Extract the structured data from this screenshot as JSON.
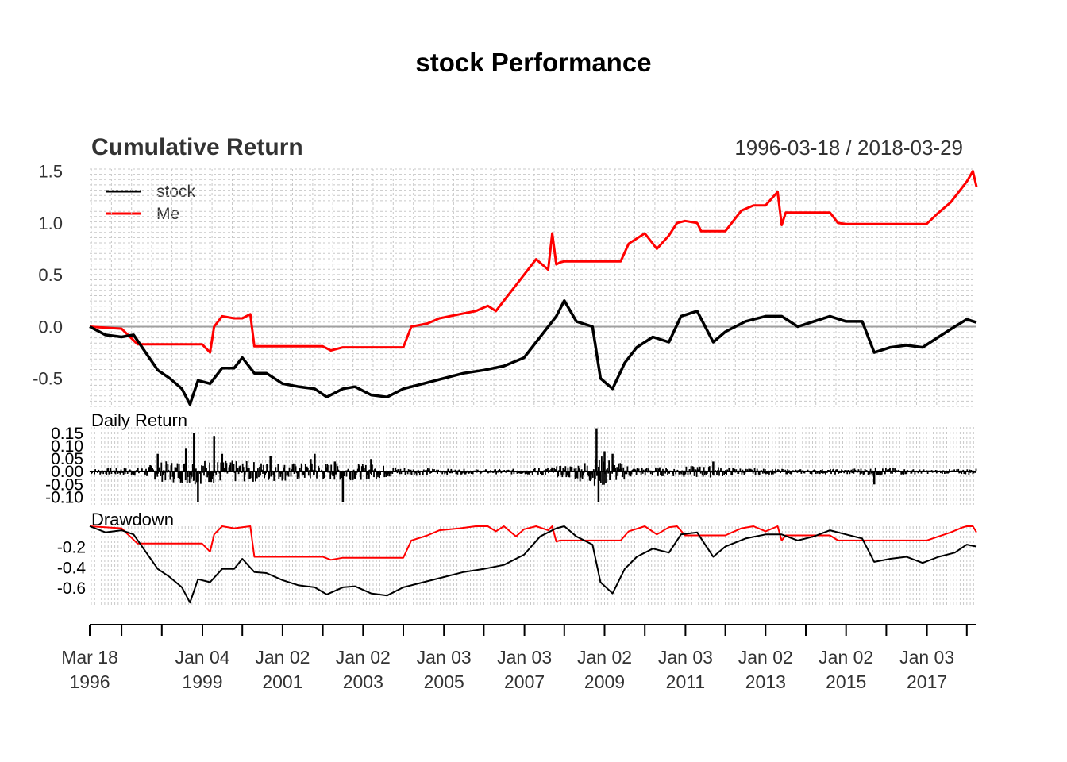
{
  "title": "stock Performance",
  "colors": {
    "stock": "#000000",
    "Me": "#ff0000",
    "grid": "#c8c8c8",
    "zero": "#a0a0a0"
  },
  "chart_data": [
    {
      "type": "line",
      "panel": "cumulative",
      "title": "Cumulative Return",
      "date_range": "1996-03-18 / 2018-03-29",
      "xlim": [
        1996.21,
        2018.24
      ],
      "ylim": [
        -0.77,
        1.52
      ],
      "yticks": [
        -0.5,
        0.0,
        0.5,
        1.0,
        1.5
      ],
      "ytick_labels": [
        "-0.5",
        "0.0",
        "0.5",
        "1.0",
        "1.5"
      ],
      "grid": true,
      "legend": "top-left",
      "series": [
        {
          "name": "stock",
          "color": "#000000",
          "x": [
            1996.21,
            1996.6,
            1997.0,
            1997.3,
            1997.6,
            1997.9,
            1998.2,
            1998.5,
            1998.7,
            1998.9,
            1999.2,
            1999.5,
            1999.8,
            2000.0,
            2000.3,
            2000.6,
            2001.0,
            2001.4,
            2001.8,
            2002.1,
            2002.5,
            2002.8,
            2003.2,
            2003.6,
            2004.0,
            2004.5,
            2005.0,
            2005.5,
            2006.0,
            2006.5,
            2007.0,
            2007.4,
            2007.8,
            2008.0,
            2008.3,
            2008.7,
            2008.9,
            2009.2,
            2009.5,
            2009.8,
            2010.2,
            2010.6,
            2010.9,
            2011.3,
            2011.7,
            2012.0,
            2012.5,
            2013.0,
            2013.4,
            2013.8,
            2014.2,
            2014.6,
            2015.0,
            2015.4,
            2015.7,
            2016.1,
            2016.5,
            2016.9,
            2017.3,
            2017.7,
            2018.0,
            2018.24
          ],
          "values": [
            0.0,
            -0.08,
            -0.1,
            -0.08,
            -0.25,
            -0.42,
            -0.5,
            -0.6,
            -0.75,
            -0.52,
            -0.55,
            -0.4,
            -0.4,
            -0.3,
            -0.45,
            -0.45,
            -0.55,
            -0.58,
            -0.6,
            -0.68,
            -0.6,
            -0.58,
            -0.66,
            -0.68,
            -0.6,
            -0.55,
            -0.5,
            -0.45,
            -0.42,
            -0.38,
            -0.3,
            -0.1,
            0.1,
            0.25,
            0.05,
            0.0,
            -0.5,
            -0.6,
            -0.35,
            -0.2,
            -0.1,
            -0.15,
            0.1,
            0.15,
            -0.15,
            -0.05,
            0.05,
            0.1,
            0.1,
            0.0,
            0.05,
            0.1,
            0.05,
            0.05,
            -0.25,
            -0.2,
            -0.18,
            -0.2,
            -0.1,
            0.0,
            0.07,
            0.04
          ]
        },
        {
          "name": "Me",
          "color": "#ff0000",
          "x": [
            1996.21,
            1997.0,
            1997.4,
            1998.2,
            1999.0,
            1999.2,
            1999.3,
            1999.5,
            1999.8,
            2000.0,
            2000.2,
            2000.3,
            2001.0,
            2002.0,
            2002.2,
            2002.5,
            2003.0,
            2004.0,
            2004.2,
            2004.6,
            2004.9,
            2005.4,
            2005.8,
            2006.1,
            2006.3,
            2006.5,
            2006.8,
            2007.0,
            2007.3,
            2007.6,
            2007.7,
            2007.8,
            2007.9,
            2008.0,
            2009.0,
            2009.4,
            2009.6,
            2010.0,
            2010.3,
            2010.6,
            2010.8,
            2011.0,
            2011.3,
            2011.4,
            2012.0,
            2012.4,
            2012.7,
            2013.0,
            2013.3,
            2013.4,
            2013.5,
            2014.0,
            2014.6,
            2014.8,
            2015.0,
            2017.0,
            2017.3,
            2017.6,
            2017.9,
            2018.0,
            2018.15,
            2018.24
          ],
          "values": [
            0.0,
            -0.02,
            -0.17,
            -0.17,
            -0.17,
            -0.25,
            0.0,
            0.1,
            0.08,
            0.08,
            0.12,
            -0.19,
            -0.19,
            -0.19,
            -0.23,
            -0.2,
            -0.2,
            -0.2,
            0.0,
            0.03,
            0.08,
            0.12,
            0.15,
            0.2,
            0.15,
            0.25,
            0.4,
            0.5,
            0.65,
            0.55,
            0.9,
            0.6,
            0.62,
            0.63,
            0.63,
            0.63,
            0.8,
            0.9,
            0.75,
            0.88,
            1.0,
            1.02,
            1.0,
            0.92,
            0.92,
            1.12,
            1.17,
            1.17,
            1.3,
            0.98,
            1.1,
            1.1,
            1.1,
            1.0,
            0.99,
            0.99,
            1.1,
            1.2,
            1.35,
            1.4,
            1.5,
            1.35
          ]
        }
      ]
    },
    {
      "type": "bar",
      "panel": "daily",
      "title": "Daily Return",
      "xlim": [
        1996.21,
        2018.24
      ],
      "ylim": [
        -0.13,
        0.175
      ],
      "yticks": [
        -0.1,
        -0.05,
        0.0,
        0.05,
        0.1,
        0.15
      ],
      "ytick_labels": [
        "-0.10",
        "-0.05",
        "0.00",
        "0.05",
        "0.10",
        "0.15"
      ],
      "grid": true,
      "volatility": {
        "x": [
          1996.21,
          1997.5,
          1998.0,
          1998.8,
          1999.5,
          2000.5,
          2001.5,
          2002.5,
          2003.3,
          2004.0,
          2005.0,
          2006.0,
          2007.0,
          2007.5,
          2008.0,
          2008.6,
          2008.9,
          2009.3,
          2009.8,
          2010.5,
          2011.5,
          2012.0,
          2013.0,
          2014.0,
          2015.0,
          2015.8,
          2016.5,
          2017.2,
          2018.0,
          2018.24
        ],
        "values": [
          0.012,
          0.018,
          0.04,
          0.05,
          0.045,
          0.04,
          0.035,
          0.035,
          0.03,
          0.018,
          0.012,
          0.01,
          0.012,
          0.018,
          0.025,
          0.045,
          0.065,
          0.04,
          0.02,
          0.018,
          0.025,
          0.018,
          0.012,
          0.01,
          0.012,
          0.018,
          0.012,
          0.008,
          0.012,
          0.014
        ]
      },
      "spikes": [
        {
          "x": 1997.9,
          "value": 0.07
        },
        {
          "x": 1998.6,
          "value": 0.09
        },
        {
          "x": 1998.8,
          "value": 0.15
        },
        {
          "x": 1998.9,
          "value": -0.12
        },
        {
          "x": 1999.3,
          "value": 0.14
        },
        {
          "x": 1999.5,
          "value": 0.07
        },
        {
          "x": 2000.7,
          "value": 0.06
        },
        {
          "x": 2001.7,
          "value": 0.05
        },
        {
          "x": 2001.8,
          "value": 0.07
        },
        {
          "x": 2002.3,
          "value": 0.04
        },
        {
          "x": 2002.5,
          "value": -0.12
        },
        {
          "x": 2003.2,
          "value": 0.05
        },
        {
          "x": 2008.8,
          "value": 0.17
        },
        {
          "x": 2008.85,
          "value": -0.12
        },
        {
          "x": 2009.0,
          "value": 0.08
        },
        {
          "x": 2009.2,
          "value": 0.07
        },
        {
          "x": 2011.7,
          "value": 0.04
        },
        {
          "x": 2015.7,
          "value": -0.05
        }
      ]
    },
    {
      "type": "line",
      "panel": "drawdown",
      "title": "Drawdown",
      "xlim": [
        1996.21,
        2018.24
      ],
      "ylim": [
        -0.78,
        0.0
      ],
      "yticks": [
        -0.6,
        -0.4,
        -0.2
      ],
      "ytick_labels": [
        "-0.6",
        "-0.4",
        "-0.2"
      ],
      "grid": true,
      "series": [
        {
          "name": "stock",
          "color": "#000000",
          "x": [
            1996.21,
            1996.6,
            1997.0,
            1997.3,
            1997.6,
            1997.9,
            1998.2,
            1998.5,
            1998.7,
            1998.9,
            1999.2,
            1999.5,
            1999.8,
            2000.0,
            2000.3,
            2000.6,
            2001.0,
            2001.4,
            2001.8,
            2002.1,
            2002.5,
            2002.8,
            2003.2,
            2003.6,
            2004.0,
            2004.5,
            2005.0,
            2005.5,
            2006.0,
            2006.5,
            2007.0,
            2007.4,
            2007.8,
            2008.0,
            2008.3,
            2008.7,
            2008.9,
            2009.2,
            2009.5,
            2009.8,
            2010.2,
            2010.6,
            2010.9,
            2011.3,
            2011.7,
            2012.0,
            2012.5,
            2013.0,
            2013.4,
            2013.8,
            2014.2,
            2014.6,
            2015.0,
            2015.4,
            2015.7,
            2016.1,
            2016.5,
            2016.9,
            2017.3,
            2017.7,
            2018.0,
            2018.24
          ],
          "values": [
            0.0,
            -0.06,
            -0.04,
            -0.08,
            -0.25,
            -0.42,
            -0.5,
            -0.6,
            -0.75,
            -0.52,
            -0.55,
            -0.42,
            -0.42,
            -0.32,
            -0.45,
            -0.46,
            -0.53,
            -0.58,
            -0.6,
            -0.67,
            -0.6,
            -0.59,
            -0.66,
            -0.68,
            -0.6,
            -0.55,
            -0.5,
            -0.45,
            -0.42,
            -0.38,
            -0.28,
            -0.1,
            -0.02,
            0.0,
            -0.1,
            -0.18,
            -0.55,
            -0.66,
            -0.42,
            -0.3,
            -0.22,
            -0.26,
            -0.08,
            -0.06,
            -0.3,
            -0.2,
            -0.12,
            -0.08,
            -0.08,
            -0.14,
            -0.1,
            -0.04,
            -0.08,
            -0.12,
            -0.35,
            -0.32,
            -0.3,
            -0.36,
            -0.3,
            -0.26,
            -0.18,
            -0.2
          ]
        },
        {
          "name": "Me",
          "color": "#ff0000",
          "x": [
            1996.21,
            1997.0,
            1997.4,
            1998.2,
            1999.0,
            1999.2,
            1999.3,
            1999.5,
            1999.8,
            2000.0,
            2000.2,
            2000.3,
            2001.0,
            2002.0,
            2002.2,
            2002.5,
            2003.0,
            2004.0,
            2004.2,
            2004.6,
            2004.9,
            2005.4,
            2005.8,
            2006.1,
            2006.3,
            2006.5,
            2006.8,
            2007.0,
            2007.3,
            2007.6,
            2007.7,
            2007.8,
            2007.9,
            2008.0,
            2009.0,
            2009.4,
            2009.6,
            2010.0,
            2010.3,
            2010.6,
            2010.8,
            2011.0,
            2011.3,
            2011.4,
            2012.0,
            2012.4,
            2012.7,
            2013.0,
            2013.3,
            2013.4,
            2013.5,
            2014.0,
            2014.6,
            2014.8,
            2015.0,
            2017.0,
            2017.3,
            2017.6,
            2017.9,
            2018.0,
            2018.15,
            2018.24
          ],
          "values": [
            0.0,
            -0.02,
            -0.17,
            -0.17,
            -0.17,
            -0.25,
            -0.08,
            0.0,
            -0.02,
            -0.01,
            0.0,
            -0.3,
            -0.3,
            -0.3,
            -0.33,
            -0.31,
            -0.31,
            -0.31,
            -0.14,
            -0.09,
            -0.04,
            -0.02,
            0.0,
            0.0,
            -0.05,
            0.0,
            -0.1,
            -0.03,
            0.0,
            -0.04,
            0.0,
            -0.15,
            -0.14,
            -0.14,
            -0.14,
            -0.14,
            -0.05,
            0.0,
            -0.08,
            -0.01,
            0.0,
            -0.09,
            -0.09,
            -0.09,
            -0.09,
            -0.02,
            0.0,
            -0.05,
            0.0,
            -0.14,
            -0.09,
            -0.09,
            -0.09,
            -0.14,
            -0.14,
            -0.14,
            -0.1,
            -0.06,
            -0.01,
            0.0,
            0.0,
            -0.06
          ]
        }
      ]
    }
  ],
  "x_axis": {
    "ticks": [
      {
        "x": 1996.21,
        "line1": "Mar 18",
        "line2": "1996"
      },
      {
        "x": 1999.01,
        "line1": "Jan 04",
        "line2": "1999"
      },
      {
        "x": 2001.0,
        "line1": "Jan 02",
        "line2": "2001"
      },
      {
        "x": 2003.0,
        "line1": "Jan 02",
        "line2": "2003"
      },
      {
        "x": 2005.01,
        "line1": "Jan 03",
        "line2": "2005"
      },
      {
        "x": 2007.01,
        "line1": "Jan 03",
        "line2": "2007"
      },
      {
        "x": 2009.0,
        "line1": "Jan 02",
        "line2": "2009"
      },
      {
        "x": 2011.01,
        "line1": "Jan 03",
        "line2": "2011"
      },
      {
        "x": 2013.0,
        "line1": "Jan 02",
        "line2": "2013"
      },
      {
        "x": 2015.0,
        "line1": "Jan 02",
        "line2": "2015"
      },
      {
        "x": 2017.01,
        "line1": "Jan 03",
        "line2": "2017"
      }
    ],
    "minor_ticks": [
      1997.0,
      1998.0,
      2000.0,
      2002.0,
      2004.0,
      2006.0,
      2008.0,
      2010.0,
      2012.0,
      2014.0,
      2016.0,
      2018.0
    ]
  }
}
